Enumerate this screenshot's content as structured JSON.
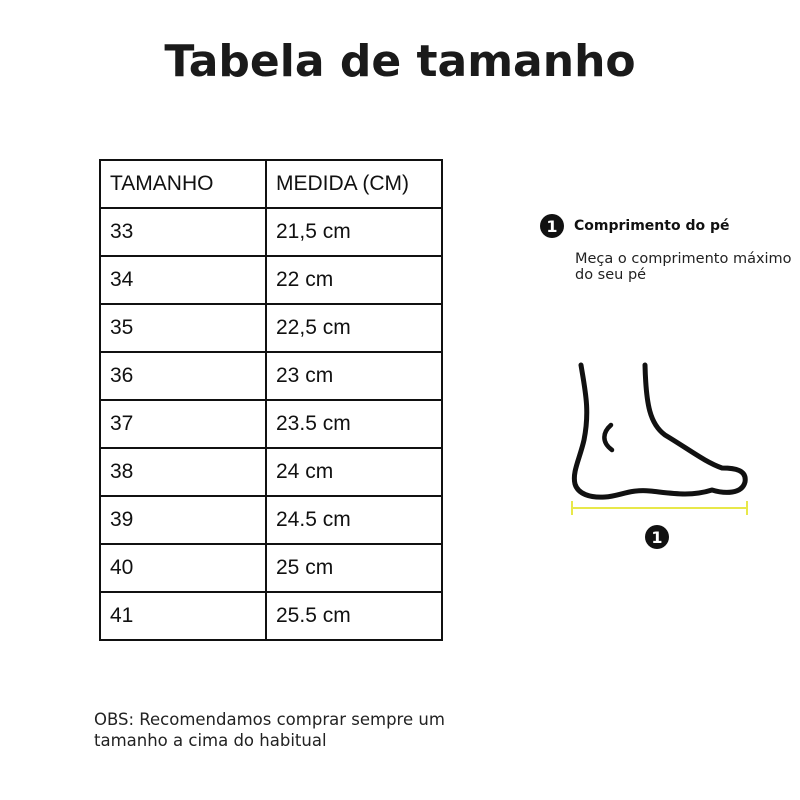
{
  "title": "Tabela de tamanho",
  "table": {
    "headers": [
      "TAMANHO",
      "MEDIDA (CM)"
    ],
    "rows": [
      [
        "33",
        "21,5 cm"
      ],
      [
        "34",
        "22 cm"
      ],
      [
        "35",
        "22,5 cm"
      ],
      [
        "36",
        "23 cm"
      ],
      [
        "37",
        "23.5 cm"
      ],
      [
        "38",
        "24 cm"
      ],
      [
        "39",
        "24.5 cm"
      ],
      [
        "40",
        "25 cm"
      ],
      [
        "41",
        "25.5 cm"
      ]
    ]
  },
  "legend": {
    "number": "1",
    "title": "Comprimento do pé",
    "description": "Meça o comprimento máximo do seu pé"
  },
  "diagram": {
    "marker": "1",
    "icon": "foot-side-icon",
    "measure_color": "#e8e84a"
  },
  "note": "OBS: Recomendamos comprar sempre um tamanho a cima do habitual"
}
